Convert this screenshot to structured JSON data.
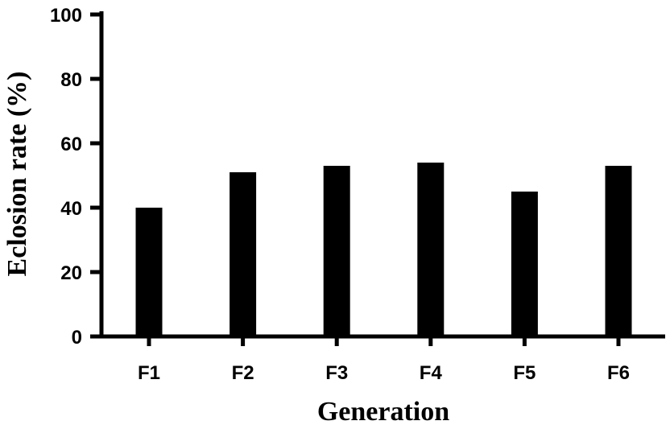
{
  "chart_data": {
    "type": "bar",
    "categories": [
      "F1",
      "F2",
      "F3",
      "F4",
      "F5",
      "F6"
    ],
    "values": [
      40,
      51,
      53,
      54,
      45,
      53
    ],
    "title": "",
    "xlabel": "Generation",
    "ylabel": "Eclosion rate (%)",
    "ylim": [
      0,
      100
    ],
    "yticks": [
      0,
      20,
      40,
      60,
      80,
      100
    ],
    "grid": false,
    "bar_color": "#000000",
    "axis_color": "#000000"
  }
}
